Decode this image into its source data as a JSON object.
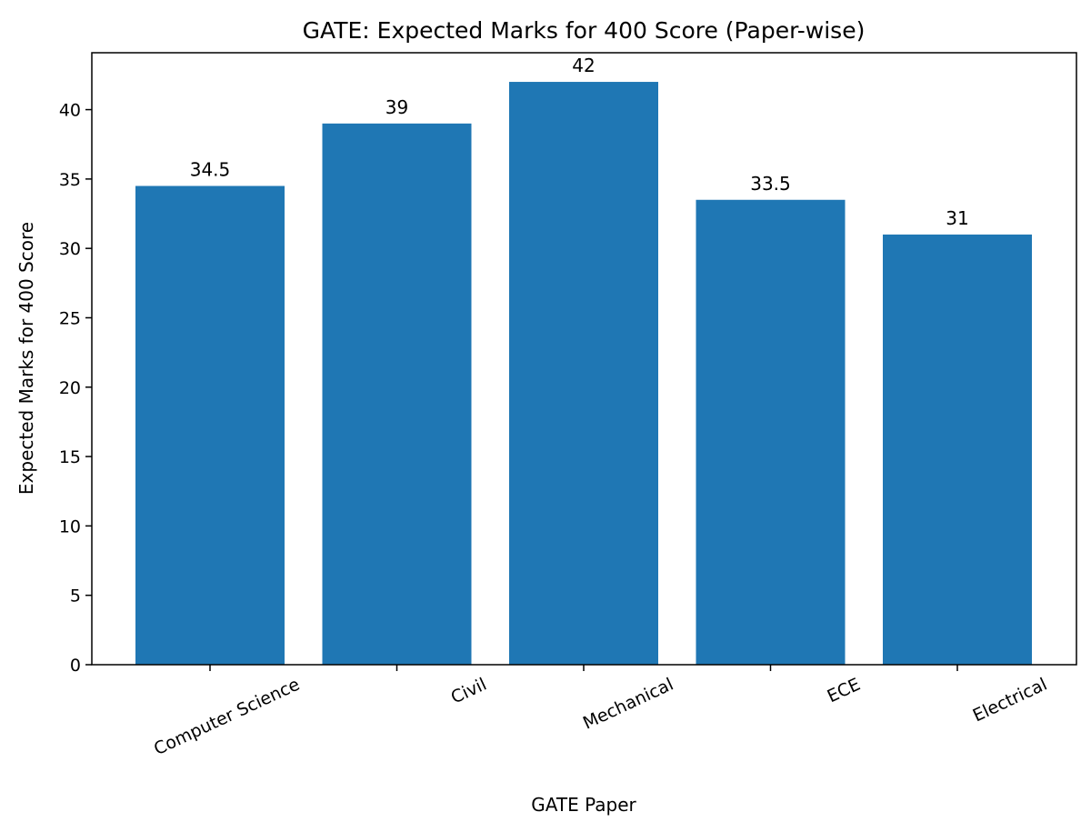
{
  "chart_data": {
    "type": "bar",
    "title": "GATE: Expected Marks for 400 Score (Paper-wise)",
    "xlabel": "GATE Paper",
    "ylabel": "Expected Marks for 400 Score",
    "categories": [
      "Computer Science",
      "Civil",
      "Mechanical",
      "ECE",
      "Electrical"
    ],
    "values": [
      34.5,
      39,
      42,
      33.5,
      31
    ],
    "data_labels": [
      "34.5",
      "39",
      "42",
      "33.5",
      "31"
    ],
    "yticks": [
      0,
      5,
      10,
      15,
      20,
      25,
      30,
      35,
      40
    ],
    "ylim": [
      0,
      44.1
    ],
    "xtick_rotation_deg": 25,
    "bar_color": "#1f77b4",
    "grid": false,
    "legend": "none"
  }
}
